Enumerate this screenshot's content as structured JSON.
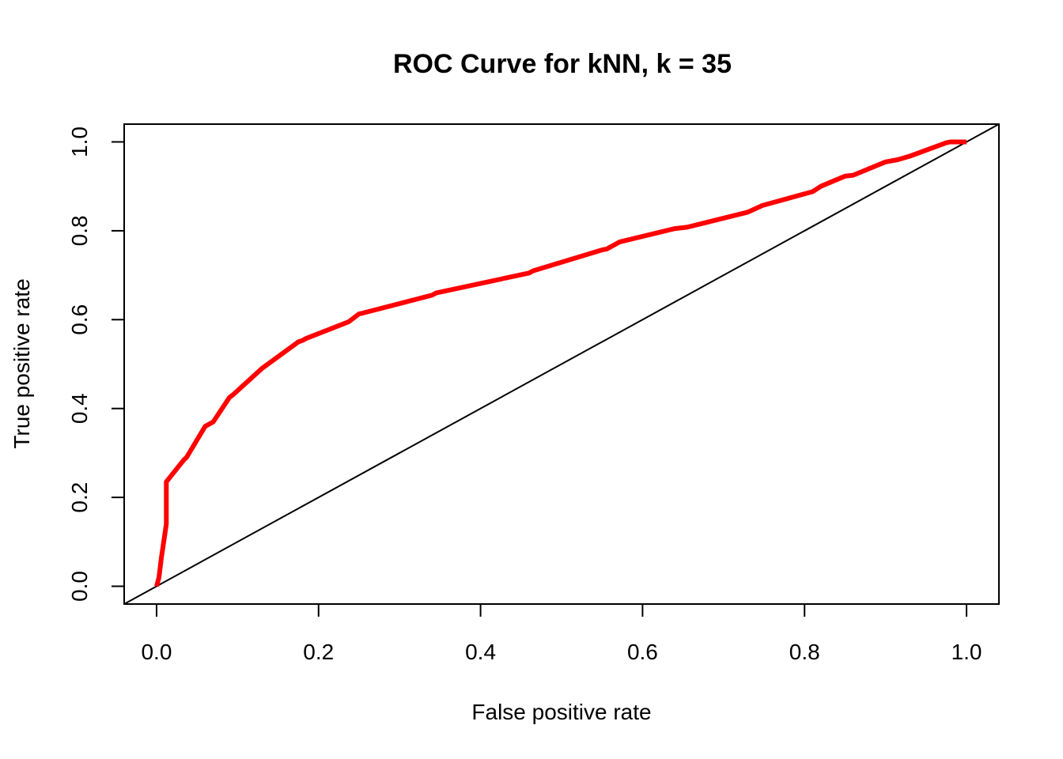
{
  "chart_data": {
    "type": "line",
    "title": "ROC Curve for kNN, k = 35",
    "xlabel": "False positive rate",
    "ylabel": "True positive rate",
    "xlim": [
      -0.04,
      1.04
    ],
    "ylim": [
      -0.04,
      1.04
    ],
    "xticks": [
      "0.0",
      "0.2",
      "0.4",
      "0.6",
      "0.8",
      "1.0"
    ],
    "yticks": [
      "0.0",
      "0.2",
      "0.4",
      "0.6",
      "0.8",
      "1.0"
    ],
    "grid": false,
    "legend": "none",
    "series": [
      {
        "color": "#ff0000",
        "x": [
          0.0,
          0.003,
          0.006,
          0.012,
          0.012,
          0.034,
          0.037,
          0.06,
          0.07,
          0.09,
          0.095,
          0.13,
          0.175,
          0.18,
          0.185,
          0.237,
          0.25,
          0.255,
          0.34,
          0.345,
          0.46,
          0.465,
          0.55,
          0.556,
          0.572,
          0.64,
          0.655,
          0.73,
          0.748,
          0.81,
          0.82,
          0.85,
          0.86,
          0.9,
          0.915,
          0.93,
          0.975,
          0.98,
          1.0
        ],
        "y": [
          0.0,
          0.02,
          0.065,
          0.14,
          0.235,
          0.285,
          0.29,
          0.36,
          0.37,
          0.425,
          0.432,
          0.49,
          0.55,
          0.553,
          0.558,
          0.595,
          0.613,
          0.615,
          0.655,
          0.66,
          0.705,
          0.71,
          0.757,
          0.759,
          0.775,
          0.805,
          0.808,
          0.842,
          0.857,
          0.888,
          0.9,
          0.923,
          0.925,
          0.955,
          0.96,
          0.968,
          0.998,
          1.0,
          1.0
        ]
      }
    ],
    "reference_line": {
      "x": [
        -0.04,
        1.04
      ],
      "y": [
        -0.04,
        1.04
      ],
      "color": "#000000"
    }
  }
}
